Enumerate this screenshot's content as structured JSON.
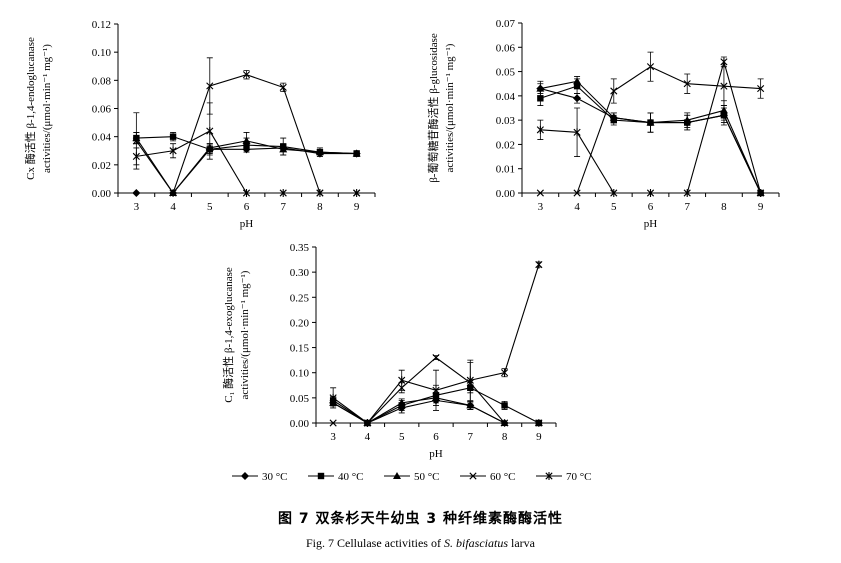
{
  "figure": {
    "caption_cn": "图 7 双条杉天牛幼虫 3 种纤维素酶酶活性",
    "caption_en_prefix": "Fig. 7   Cellulase activities of ",
    "caption_en_species": "S. bifasciatus",
    "caption_en_suffix": " larva"
  },
  "legend": {
    "entries": [
      {
        "label": "30 °C",
        "marker": "diamond"
      },
      {
        "label": "40 °C",
        "marker": "square"
      },
      {
        "label": "50 °C",
        "marker": "triangle"
      },
      {
        "label": "60 °C",
        "marker": "x"
      },
      {
        "label": "70 °C",
        "marker": "star"
      }
    ]
  },
  "chart_data": [
    {
      "id": "cx",
      "type": "line",
      "xlabel": "pH",
      "ylabel_line1": "Cx 酶活性 β-1,4-endoglucanase",
      "ylabel_line2": "activities/(μmol·min⁻¹ mg⁻¹)",
      "x": [
        3,
        4,
        5,
        6,
        7,
        8,
        9
      ],
      "ylim": [
        0,
        0.12
      ],
      "yticks": [
        0,
        0.02,
        0.04,
        0.06,
        0.08,
        0.1,
        0.12
      ],
      "ytick_labels": [
        "0.00",
        "0.02",
        "0.04",
        "0.06",
        "0.08",
        "0.10",
        "0.12"
      ],
      "series": [
        {
          "name": "30 °C",
          "marker": "diamond",
          "values": [
            0.0,
            0.0,
            0.031,
            0.031,
            0.032,
            0.028,
            0.028
          ],
          "err": [
            0,
            0,
            0.003,
            0.002,
            0.002,
            0.002,
            0.001
          ]
        },
        {
          "name": "40 °C",
          "marker": "square",
          "values": [
            0.039,
            0.04,
            0.031,
            0.034,
            0.033,
            0.029,
            0.028
          ],
          "err": [
            0.004,
            0.003,
            0.004,
            0.005,
            0.006,
            0.003,
            0.002
          ]
        },
        {
          "name": "50 °C",
          "marker": "triangle",
          "values": [
            0.039,
            0.0,
            0.032,
            0.037,
            0.031,
            0.029,
            0.028
          ],
          "err": [
            0.004,
            0,
            0.003,
            0.006,
            0.004,
            0.002,
            0.002
          ]
        },
        {
          "name": "60 °C",
          "marker": "x",
          "values": [
            0.037,
            0.0,
            0.076,
            0.084,
            0.075,
            0.0,
            0.0
          ],
          "err": [
            0.02,
            0,
            0.02,
            0.003,
            0.003,
            0,
            0
          ]
        },
        {
          "name": "70 °C",
          "marker": "star",
          "values": [
            0.026,
            0.03,
            0.044,
            0.0,
            0.0,
            0.0,
            0.0
          ],
          "err": [
            0.006,
            0.005,
            0.02,
            0,
            0,
            0,
            0
          ]
        }
      ]
    },
    {
      "id": "bg",
      "type": "line",
      "xlabel": "pH",
      "ylabel_line1": "β-葡萄糖苷酶活性 β-glucosidase",
      "ylabel_line2": "activities/(μmol·min⁻¹ mg⁻¹)",
      "x": [
        3,
        4,
        5,
        6,
        7,
        8,
        9
      ],
      "ylim": [
        0,
        0.07
      ],
      "yticks": [
        0,
        0.01,
        0.02,
        0.03,
        0.04,
        0.05,
        0.06,
        0.07
      ],
      "ytick_labels": [
        "0.00",
        "0.01",
        "0.02",
        "0.03",
        "0.04",
        "0.05",
        "0.06",
        "0.07"
      ],
      "series": [
        {
          "name": "30 °C",
          "marker": "diamond",
          "values": [
            0.043,
            0.039,
            0.031,
            0.029,
            0.029,
            0.032,
            0.0
          ],
          "err": [
            0.002,
            0.002,
            0.002,
            0.004,
            0.003,
            0.003,
            0
          ]
        },
        {
          "name": "40 °C",
          "marker": "square",
          "values": [
            0.039,
            0.044,
            0.03,
            0.029,
            0.029,
            0.032,
            0.0
          ],
          "err": [
            0.003,
            0.003,
            0.002,
            0.004,
            0.003,
            0.004,
            0
          ]
        },
        {
          "name": "50 °C",
          "marker": "triangle",
          "values": [
            0.043,
            0.046,
            0.031,
            0.029,
            0.03,
            0.034,
            0.0
          ],
          "err": [
            0.003,
            0.002,
            0.002,
            0.004,
            0.003,
            0.004,
            0
          ]
        },
        {
          "name": "60 °C",
          "marker": "x",
          "values": [
            0.0,
            0.0,
            0.042,
            0.052,
            0.045,
            0.044,
            0.043
          ],
          "err": [
            0,
            0,
            0.005,
            0.006,
            0.004,
            0.008,
            0.004
          ]
        },
        {
          "name": "70 °C",
          "marker": "star",
          "values": [
            0.026,
            0.025,
            0.0,
            0.0,
            0.0,
            0.054,
            0.0
          ],
          "err": [
            0.004,
            0.01,
            0,
            0,
            0,
            0.002,
            0
          ]
        }
      ]
    },
    {
      "id": "c1",
      "type": "line",
      "xlabel": "pH",
      "ylabel_line1": "C₁ 酶活性 β-1,4-exoglucanase",
      "ylabel_line2": "activities/(μmol·min⁻¹ mg⁻¹)",
      "x": [
        3,
        4,
        5,
        6,
        7,
        8,
        9
      ],
      "ylim": [
        0,
        0.35
      ],
      "yticks": [
        0,
        0.05,
        0.1,
        0.15,
        0.2,
        0.25,
        0.3,
        0.35
      ],
      "ytick_labels": [
        "0.00",
        "0.05",
        "0.10",
        "0.15",
        "0.20",
        "0.25",
        "0.30",
        "0.35"
      ],
      "series": [
        {
          "name": "30 °C",
          "marker": "diamond",
          "values": [
            0.04,
            0.0,
            0.03,
            0.045,
            0.035,
            0.0,
            0.0
          ],
          "err": [
            0.006,
            0,
            0.01,
            0.01,
            0.008,
            0,
            0
          ]
        },
        {
          "name": "40 °C",
          "marker": "square",
          "values": [
            0.045,
            0.0,
            0.035,
            0.055,
            0.07,
            0.035,
            0.0
          ],
          "err": [
            0.008,
            0,
            0.01,
            0.02,
            0.01,
            0.008,
            0
          ]
        },
        {
          "name": "50 °C",
          "marker": "triangle",
          "values": [
            0.04,
            0.0,
            0.04,
            0.05,
            0.035,
            0.0,
            0.0
          ],
          "err": [
            0.006,
            0,
            0.008,
            0.01,
            0.008,
            0,
            0
          ]
        },
        {
          "name": "60 °C",
          "marker": "x",
          "values": [
            0.0,
            0.0,
            0.07,
            0.13,
            0.08,
            0.0,
            0.0
          ],
          "err": [
            0,
            0,
            0.01,
            0.004,
            0.04,
            0,
            0
          ]
        },
        {
          "name": "70 °C",
          "marker": "star",
          "values": [
            0.05,
            0.0,
            0.085,
            0.065,
            0.085,
            0.1,
            0.315
          ],
          "err": [
            0.02,
            0,
            0.02,
            0.04,
            0.04,
            0.008,
            0.005
          ]
        }
      ]
    }
  ]
}
